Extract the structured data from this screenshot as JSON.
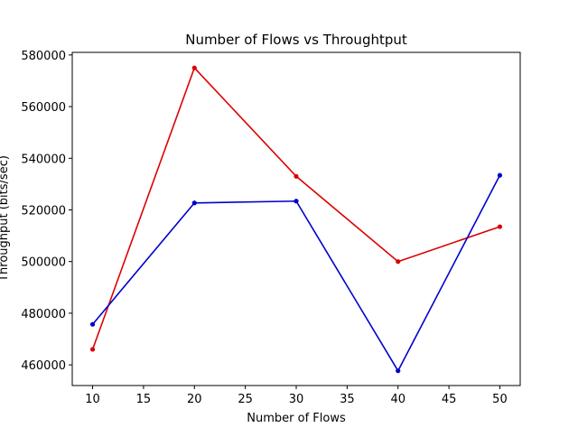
{
  "chart_data": {
    "type": "line",
    "title": "Number of Flows vs Throughtput",
    "xlabel": "Number of Flows",
    "ylabel": "Throughput (bits/sec)",
    "x": [
      10,
      20,
      30,
      40,
      50
    ],
    "series": [
      {
        "color": "#dd0000",
        "values": [
          466000,
          575000,
          533000,
          500000,
          513500
        ]
      },
      {
        "color": "#0000cc",
        "values": [
          475700,
          522700,
          523400,
          457700,
          533400
        ]
      }
    ],
    "xlim": [
      8.0,
      52.0
    ],
    "ylim": [
      452000,
      581000
    ],
    "xticks": [
      10,
      15,
      20,
      25,
      30,
      35,
      40,
      45,
      50
    ],
    "yticks": [
      460000,
      480000,
      500000,
      520000,
      540000,
      560000,
      580000
    ],
    "grid": false,
    "legend": "none"
  }
}
